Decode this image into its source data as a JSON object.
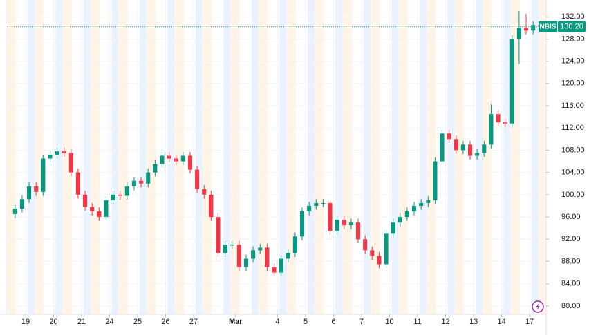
{
  "chart_data": {
    "type": "candlestick",
    "symbol": "NBIS",
    "last_price": {
      "value": 130.2,
      "label": "130.20"
    },
    "up_color": "#089981",
    "down_color": "#f23645",
    "grid": true,
    "xlim": [
      -0.716,
      18.59
    ],
    "ylim": [
      78.5,
      135
    ],
    "xticks": [
      {
        "value": 0,
        "label": "19"
      },
      {
        "value": 1,
        "label": "20"
      },
      {
        "value": 2,
        "label": "21"
      },
      {
        "value": 3,
        "label": "24"
      },
      {
        "value": 4,
        "label": "25"
      },
      {
        "value": 5,
        "label": "26"
      },
      {
        "value": 6,
        "label": "27"
      },
      {
        "value": 7.5,
        "label": "Mar"
      },
      {
        "value": 9,
        "label": "4"
      },
      {
        "value": 10,
        "label": "5"
      },
      {
        "value": 11,
        "label": "6"
      },
      {
        "value": 12,
        "label": "7"
      },
      {
        "value": 13,
        "label": "10"
      },
      {
        "value": 14,
        "label": "11"
      },
      {
        "value": 15,
        "label": "12"
      },
      {
        "value": 16,
        "label": "13"
      },
      {
        "value": 17,
        "label": "14"
      },
      {
        "value": 18,
        "label": "17"
      }
    ],
    "yticks": [
      {
        "value": 80,
        "label": "80.00"
      },
      {
        "value": 84,
        "label": "84.00"
      },
      {
        "value": 88,
        "label": "88.00"
      },
      {
        "value": 92,
        "label": "92.00"
      },
      {
        "value": 96,
        "label": "96.00"
      },
      {
        "value": 100,
        "label": "100.00"
      },
      {
        "value": 104,
        "label": "104.00"
      },
      {
        "value": 108,
        "label": "108.00"
      },
      {
        "value": 112,
        "label": "112.00"
      },
      {
        "value": 116,
        "label": "116.00"
      },
      {
        "value": 120,
        "label": "120.00"
      },
      {
        "value": 124,
        "label": "124.00"
      },
      {
        "value": 128,
        "label": "128.00"
      },
      {
        "value": 132,
        "label": "132.00"
      }
    ],
    "x": [
      -0.375,
      -0.125,
      0.125,
      0.375,
      0.625,
      0.875,
      1.125,
      1.375,
      1.625,
      1.875,
      2.125,
      2.375,
      2.625,
      2.875,
      3.125,
      3.375,
      3.625,
      3.875,
      4.125,
      4.375,
      4.625,
      4.875,
      5.125,
      5.375,
      5.625,
      5.875,
      6.125,
      6.375,
      6.625,
      6.875,
      7.125,
      7.375,
      7.625,
      7.875,
      8.125,
      8.375,
      8.625,
      8.875,
      9.125,
      9.375,
      9.625,
      9.875,
      10.125,
      10.375,
      10.625,
      10.875,
      11.125,
      11.375,
      11.625,
      11.875,
      12.125,
      12.375,
      12.625,
      12.875,
      13.125,
      13.375,
      13.625,
      13.875,
      14.125,
      14.375,
      14.625,
      14.875,
      15.125,
      15.375,
      15.625,
      15.875,
      16.125,
      16.375,
      16.625,
      16.875,
      17.125,
      17.375,
      17.625,
      17.875,
      18.125,
      18.375
    ],
    "open": [
      96.5,
      97.5,
      99.2,
      101.5,
      100.5,
      106.5,
      107.2,
      107.8,
      107.5,
      104,
      100,
      97.8,
      97,
      96,
      99,
      100,
      99.8,
      101.5,
      102.5,
      102,
      104,
      105.5,
      107,
      106.5,
      106,
      107,
      104.5,
      101,
      100,
      96,
      89.5,
      91,
      91,
      87,
      88.5,
      90,
      90.5,
      87,
      86,
      88.5,
      89.5,
      92.5,
      97,
      98,
      98.5,
      98.5,
      93.5,
      95.5,
      94.5,
      95,
      92,
      90,
      89,
      87.5,
      93,
      95,
      96,
      97,
      98,
      98.5,
      99,
      106,
      111,
      110,
      108,
      109,
      107,
      107.5,
      109,
      114.5,
      113,
      112.8,
      128,
      130,
      129.5,
      130.5
    ],
    "high": [
      98.2,
      99.9,
      102.2,
      102.2,
      107.2,
      107.9,
      108.5,
      108.5,
      108.2,
      104.7,
      100.7,
      98.5,
      97.7,
      99.7,
      100.7,
      100.7,
      102.2,
      103.2,
      103.2,
      104.7,
      106.2,
      107.7,
      107.7,
      107.2,
      107.7,
      107.7,
      105.2,
      101.7,
      100.7,
      96.7,
      91.7,
      91.7,
      91.7,
      89.2,
      90.7,
      91.2,
      91.2,
      87.7,
      89.2,
      90.2,
      93.2,
      97.7,
      98.7,
      99.2,
      99.2,
      99.2,
      96.2,
      96.2,
      95.7,
      95.7,
      92.7,
      90.7,
      89.7,
      93.7,
      95.7,
      96.7,
      97.7,
      98.7,
      99.2,
      99.7,
      106.7,
      111.7,
      111.7,
      110.7,
      109.7,
      109.7,
      108.2,
      109.7,
      116.3,
      115.2,
      113.7,
      128.7,
      133,
      132.5,
      131.2,
      131.2
    ],
    "low": [
      95.8,
      96.8,
      98.5,
      99.8,
      99.8,
      105.8,
      106.5,
      106.8,
      103.3,
      99.3,
      97.1,
      96.3,
      95.3,
      95.3,
      98.3,
      99.1,
      99.1,
      100.8,
      101.3,
      101.3,
      103.3,
      104.8,
      105.8,
      105.3,
      105.3,
      103.8,
      100.3,
      99.3,
      95.3,
      88.8,
      88.8,
      90.3,
      86.3,
      86.3,
      87.8,
      89.3,
      86.3,
      85.3,
      85.3,
      87.8,
      88.8,
      91.8,
      96.3,
      97.3,
      97.8,
      92.8,
      92.8,
      93.8,
      93.8,
      91.3,
      89.3,
      88.3,
      86.8,
      86.8,
      92.3,
      94.3,
      95.3,
      96.3,
      97.3,
      97.8,
      98.3,
      105.3,
      109.3,
      107.3,
      107.3,
      106.3,
      106.3,
      106.8,
      108.3,
      112.3,
      112.1,
      112.1,
      123.5,
      128.8,
      128.8,
      129.5
    ],
    "close": [
      97.5,
      99.2,
      101.5,
      100.5,
      106.5,
      107.2,
      107.8,
      107.5,
      104,
      100,
      97.8,
      97,
      96,
      99,
      100,
      99.8,
      101.5,
      102.5,
      102,
      104,
      105.5,
      107,
      106.5,
      106,
      107,
      104.5,
      101,
      100,
      96,
      89.5,
      91,
      91,
      87,
      88.5,
      90,
      90.5,
      87,
      86,
      88.5,
      89.5,
      92.5,
      97,
      98,
      98.5,
      98.5,
      93.5,
      95.5,
      94.5,
      95,
      92,
      90,
      89,
      87.5,
      93,
      95,
      96,
      97,
      98,
      98.5,
      99,
      106,
      111,
      110,
      108,
      109,
      107,
      107.5,
      109,
      114.5,
      113,
      112.8,
      128,
      130,
      129.5,
      130.5,
      130.2
    ]
  }
}
